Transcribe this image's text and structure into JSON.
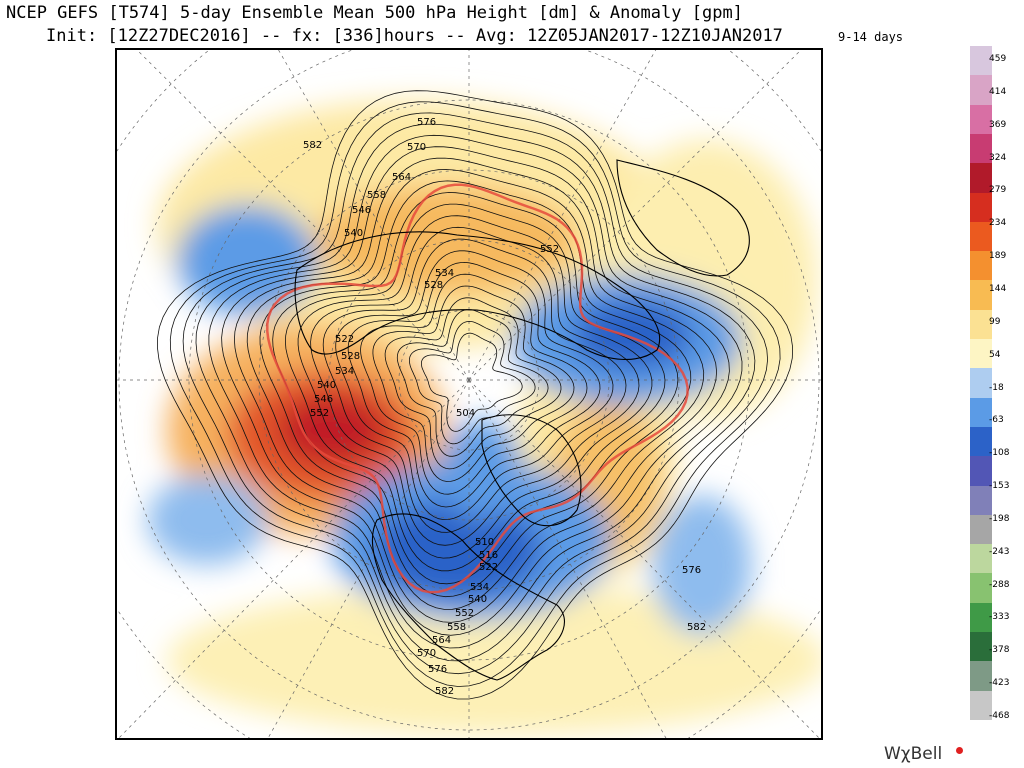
{
  "title": {
    "line1": "NCEP GEFS [T574] 5-day Ensemble Mean 500 hPa Height [dm] & Anomaly [gpm]",
    "line2": "Init: [12Z27DEC2016] -- fx: [336]hours -- Avg: 12Z05JAN2017-12Z10JAN2017",
    "period": "9-14 days"
  },
  "colorbar": {
    "labels": [
      "459",
      "414",
      "369",
      "324",
      "279",
      "234",
      "189",
      "144",
      "99",
      "54",
      "-18",
      "-63",
      "-108",
      "-153",
      "-198",
      "-243",
      "-288",
      "-333",
      "-378",
      "-423",
      "-468"
    ],
    "colors": [
      "#d8c7de",
      "#d9a4c6",
      "#d86fa4",
      "#c83c72",
      "#b11a2a",
      "#d62e1f",
      "#eb5a1f",
      "#f4902f",
      "#f8bb52",
      "#fbe193",
      "#fdf5c4",
      "#aecdf0",
      "#5b9be6",
      "#2c62c8",
      "#5256b5",
      "#8080b8",
      "#a6a6a6",
      "#bcd79e",
      "#88c270",
      "#3f9a47",
      "#2a6e3a",
      "#7e9a86",
      "#c7c7c7"
    ]
  },
  "contours": {
    "height_labels": [
      "576",
      "570",
      "564",
      "558",
      "552",
      "546",
      "540",
      "534",
      "528",
      "522",
      "516",
      "510",
      "504",
      "582"
    ]
  },
  "brand": "WχBell"
}
